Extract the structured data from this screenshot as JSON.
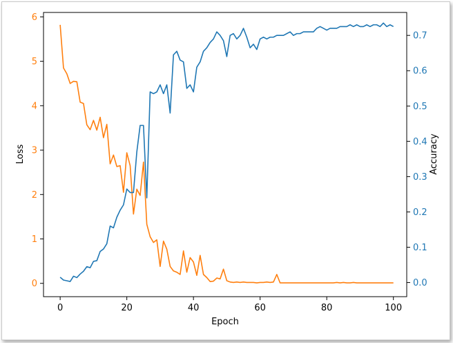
{
  "chart_data": {
    "type": "line",
    "title": "",
    "xlabel": "Epoch",
    "ylabel_left": "Loss",
    "ylabel_right": "Accuracy",
    "xlim": [
      -5,
      104
    ],
    "ylim_left": [
      -0.3,
      6.1
    ],
    "ylim_right": [
      -0.04,
      0.765
    ],
    "x_ticks": [
      0,
      20,
      40,
      60,
      80,
      100
    ],
    "y_ticks_left": [
      0,
      1,
      2,
      3,
      4,
      5,
      6
    ],
    "y_ticks_right": [
      0.0,
      0.1,
      0.2,
      0.3,
      0.4,
      0.5,
      0.6,
      0.7
    ],
    "grid": false,
    "legend": "none",
    "colors": {
      "loss": "#ff7f0e",
      "accuracy": "#1f77b4"
    },
    "series": [
      {
        "axis": "left",
        "values": [
          5.82,
          4.85,
          4.72,
          4.5,
          4.55,
          4.54,
          4.08,
          4.05,
          3.57,
          3.46,
          3.67,
          3.45,
          3.74,
          3.28,
          3.58,
          2.69,
          2.89,
          2.63,
          2.65,
          2.05,
          2.94,
          2.65,
          1.56,
          2.12,
          1.98,
          2.73,
          1.33,
          1.05,
          0.92,
          0.98,
          0.38,
          0.95,
          0.77,
          0.38,
          0.28,
          0.25,
          0.2,
          0.73,
          0.25,
          0.58,
          0.48,
          0.18,
          0.63,
          0.2,
          0.13,
          0.04,
          0.05,
          0.12,
          0.1,
          0.32,
          0.06,
          0.03,
          0.02,
          0.03,
          0.02,
          0.03,
          0.02,
          0.02,
          0.02,
          0.01,
          0.02,
          0.02,
          0.03,
          0.02,
          0.03,
          0.2,
          0.01,
          0.01,
          0.01,
          0.01,
          0.01,
          0.01,
          0.01,
          0.01,
          0.01,
          0.01,
          0.01,
          0.01,
          0.01,
          0.01,
          0.01,
          0.01,
          0.01,
          0.02,
          0.01,
          0.02,
          0.01,
          0.01,
          0.02,
          0.01,
          0.01,
          0.01,
          0.01,
          0.01,
          0.01,
          0.01,
          0.01,
          0.01,
          0.01,
          0.01,
          0.01
        ]
      },
      {
        "axis": "right",
        "values": [
          0.015,
          0.007,
          0.005,
          0.003,
          0.018,
          0.014,
          0.024,
          0.032,
          0.045,
          0.042,
          0.06,
          0.062,
          0.088,
          0.095,
          0.11,
          0.16,
          0.155,
          0.185,
          0.205,
          0.22,
          0.265,
          0.255,
          0.255,
          0.37,
          0.445,
          0.445,
          0.24,
          0.54,
          0.535,
          0.54,
          0.56,
          0.535,
          0.56,
          0.48,
          0.645,
          0.655,
          0.63,
          0.625,
          0.55,
          0.56,
          0.54,
          0.61,
          0.625,
          0.655,
          0.665,
          0.68,
          0.69,
          0.71,
          0.7,
          0.685,
          0.64,
          0.7,
          0.705,
          0.69,
          0.7,
          0.72,
          0.695,
          0.665,
          0.675,
          0.66,
          0.69,
          0.695,
          0.69,
          0.695,
          0.695,
          0.7,
          0.7,
          0.7,
          0.705,
          0.71,
          0.7,
          0.705,
          0.705,
          0.71,
          0.71,
          0.71,
          0.71,
          0.72,
          0.725,
          0.72,
          0.715,
          0.72,
          0.72,
          0.72,
          0.725,
          0.725,
          0.725,
          0.73,
          0.725,
          0.73,
          0.725,
          0.725,
          0.73,
          0.725,
          0.73,
          0.73,
          0.725,
          0.735,
          0.725,
          0.73,
          0.725
        ]
      }
    ]
  }
}
